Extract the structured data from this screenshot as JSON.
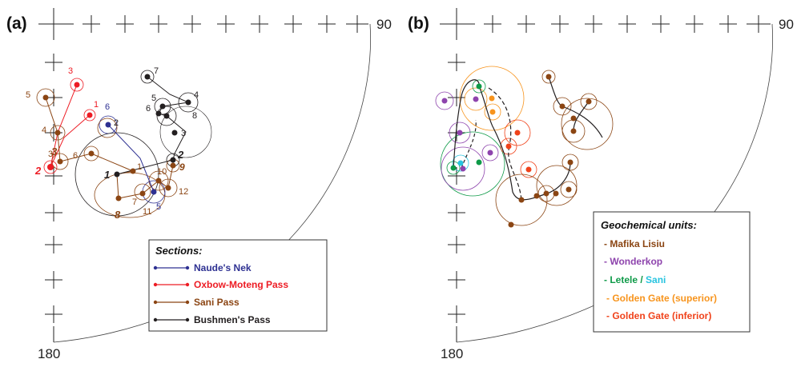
{
  "panels": {
    "a": {
      "label": "(a)",
      "axis_top": "90",
      "axis_bottom": "180",
      "legend": {
        "title": "Sections:",
        "items": [
          {
            "label": "Naude's Nek",
            "color": "#2e3192"
          },
          {
            "label": "Oxbow-Moteng Pass",
            "color": "#ed1c24"
          },
          {
            "label": "Sani Pass",
            "color": "#8b4513"
          },
          {
            "label": "Bushmen's Pass",
            "color": "#231f20"
          }
        ]
      },
      "point_labels": {
        "red": [
          "3",
          "1",
          "2",
          "3",
          "2"
        ],
        "blue": [
          "6",
          "2",
          "5"
        ],
        "black": [
          "7",
          "4",
          "5",
          "6",
          "8",
          "3",
          "2",
          "1"
        ],
        "brown": [
          "5",
          "4",
          "3",
          "6",
          "1",
          "10",
          "9",
          "12",
          "11",
          "7",
          "8"
        ]
      }
    },
    "b": {
      "label": "(b)",
      "axis_top": "90",
      "axis_bottom": "180",
      "legend": {
        "title": "Geochemical units:",
        "items": [
          {
            "label": "- Mafika Lisiu",
            "color": "#8b4513"
          },
          {
            "label": "- Wonderkop",
            "color": "#8e44ad"
          },
          {
            "label": "- Letele",
            "color": "#0e9a48"
          },
          {
            "label": "/",
            "color": "#0e9a48"
          },
          {
            "label": "Sani",
            "color": "#27c4e0"
          },
          {
            "label": "- Golden Gate (superior)",
            "color": "#f7941d"
          },
          {
            "label": "- Golden Gate (inferior)",
            "color": "#f0421a"
          }
        ]
      }
    }
  },
  "colors": {
    "naude": "#2e3192",
    "oxbow": "#ed1c24",
    "sani": "#8b4513",
    "bushmen": "#231f20",
    "mafika": "#8b4513",
    "wonderkop": "#8e44ad",
    "letele": "#0e9a48",
    "sani_unit": "#27c4e0",
    "gg_sup": "#f7941d",
    "gg_inf": "#f0421a"
  }
}
